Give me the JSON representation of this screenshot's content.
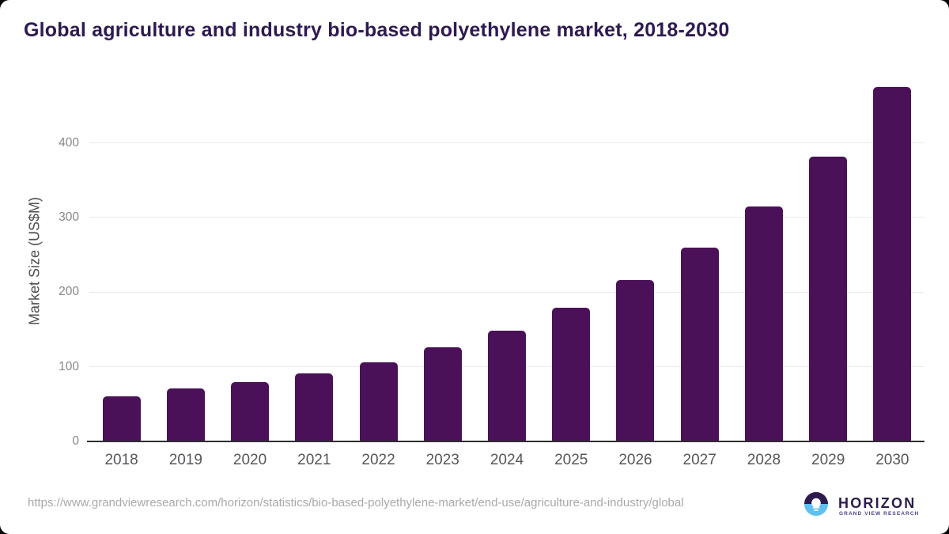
{
  "title": "Global agriculture and industry bio-based polyethylene market, 2018-2030",
  "footer": {
    "source_url": "https://www.grandviewresearch.com/horizon/statistics/bio-based-polyethylene-market/end-use/agriculture-and-industry/global",
    "logo_name": "HORIZON",
    "logo_subtitle": "GRAND VIEW RESEARCH"
  },
  "colors": {
    "bar": "#4a1158",
    "title": "#2e1a52",
    "gridline": "#eaeaec",
    "axis_line": "#2e2e2e",
    "x_tick": "#55575a",
    "y_tick": "#85878a",
    "url_text": "#a7a9ab",
    "logo_purple": "#2d1b4e",
    "logo_blue": "#5ec1ef"
  },
  "chart_data": {
    "type": "bar",
    "title": "Global agriculture and industry bio-based polyethylene market, 2018-2030",
    "categories": [
      "2018",
      "2019",
      "2020",
      "2021",
      "2022",
      "2023",
      "2024",
      "2025",
      "2026",
      "2027",
      "2028",
      "2029",
      "2030"
    ],
    "values": [
      61,
      71,
      80,
      91,
      106,
      126,
      149,
      179,
      216,
      260,
      315,
      382,
      475
    ],
    "xlabel": "",
    "ylabel": "Market Size (US$M)",
    "yticks": [
      0,
      100,
      200,
      300,
      400
    ],
    "ylim": [
      0,
      487
    ],
    "grid": true,
    "legend": false,
    "bar_color": "#4a1158"
  }
}
